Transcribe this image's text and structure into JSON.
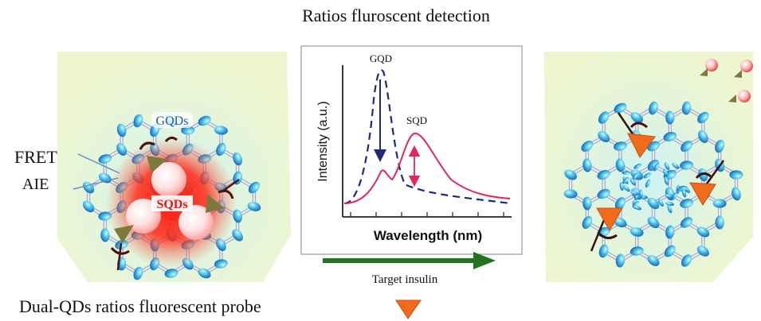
{
  "title": "Ratios fluroscent detection",
  "left_panel": {
    "gqds_label": "GQDs",
    "sqds_label": "SQDs",
    "fret_label": "FRET",
    "aie_label": "AIE"
  },
  "spectrum": {
    "gqd_peak_label": "GQD",
    "sqd_peak_label": "SQD",
    "ylabel": "Intensity (a.u.)",
    "xlabel": "Wavelength (nm)"
  },
  "arrow_label": "Target insulin",
  "caption": "Dual-QDs ratios fluorescent probe",
  "colors": {
    "gqd_curve": "#1c2a7a",
    "sqd_curve": "#e8245a",
    "process_arrow": "#23761f",
    "insulin": "#f26a1b",
    "panel_fill": "#eef6cf",
    "node": "#3fb6ea"
  }
}
